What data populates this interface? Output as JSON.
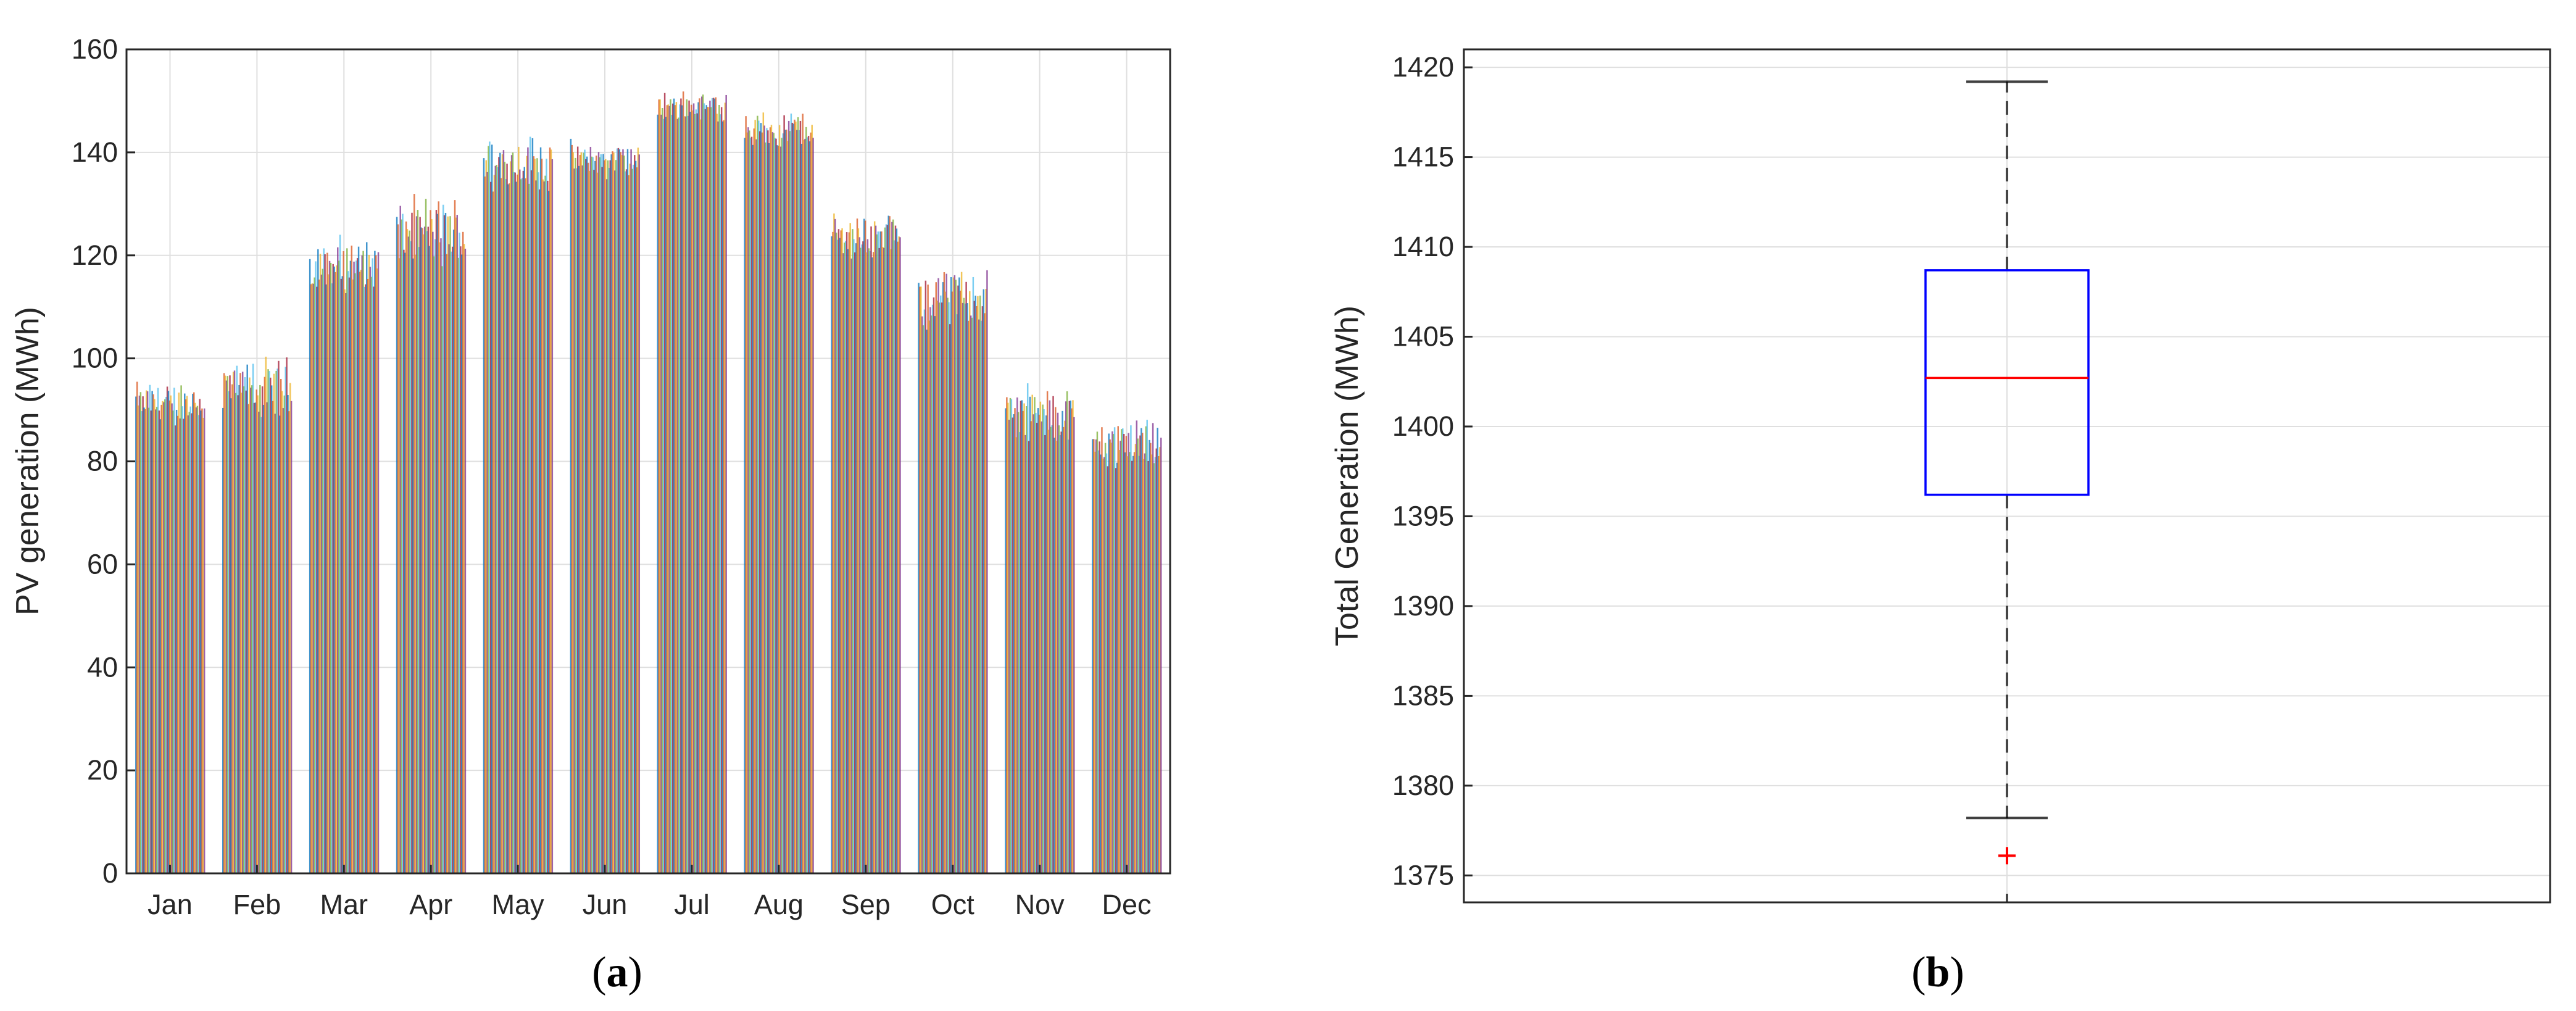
{
  "colors": {
    "grid": "#dfdfdf",
    "axis": "#262626",
    "box": "#0000ff",
    "median": "#ff0000",
    "whisker": "#000000",
    "outlier": "#ff0000",
    "bar_palette": [
      "#0072bd",
      "#d95319",
      "#edb120",
      "#7e2f8e",
      "#77ac30",
      "#4dbeee",
      "#a2142f"
    ]
  },
  "panels": [
    {
      "label_open": "(",
      "label_letter": "a",
      "label_close": ")"
    },
    {
      "label_open": "(",
      "label_letter": "b",
      "label_close": ")"
    }
  ],
  "chart_data": [
    {
      "type": "bar",
      "ylabel": "PV generation (MWh)",
      "xlabel": "",
      "ylim": [
        0,
        160
      ],
      "yticks": [
        0,
        20,
        40,
        60,
        80,
        100,
        120,
        140,
        160
      ],
      "grid": true,
      "categories": [
        "Jan",
        "Feb",
        "Mar",
        "Apr",
        "May",
        "Jun",
        "Jul",
        "Aug",
        "Sep",
        "Oct",
        "Nov",
        "Dec"
      ],
      "bars_per_category": 60,
      "series_note": "",
      "category_ranges": [
        {
          "category": "Jan",
          "min": 86,
          "typical": 92,
          "max": 97
        },
        {
          "category": "Feb",
          "min": 86,
          "typical": 93,
          "max": 102
        },
        {
          "category": "Mar",
          "min": 111,
          "typical": 117,
          "max": 125
        },
        {
          "category": "Apr",
          "min": 116,
          "typical": 123,
          "max": 133
        },
        {
          "category": "May",
          "min": 131,
          "typical": 139,
          "max": 145
        },
        {
          "category": "Jun",
          "min": 134,
          "typical": 138,
          "max": 143
        },
        {
          "category": "Jul",
          "min": 145,
          "typical": 149,
          "max": 153
        },
        {
          "category": "Aug",
          "min": 140,
          "typical": 145,
          "max": 149
        },
        {
          "category": "Sep",
          "min": 118,
          "typical": 123,
          "max": 130
        },
        {
          "category": "Oct",
          "min": 104,
          "typical": 111,
          "max": 120
        },
        {
          "category": "Nov",
          "min": 81,
          "typical": 88,
          "max": 97
        },
        {
          "category": "Dec",
          "min": 77,
          "typical": 82,
          "max": 90
        }
      ]
    },
    {
      "type": "box",
      "ylabel": "Total Generation (MWh)",
      "xlabel": "",
      "ylim": [
        1373.5,
        1421
      ],
      "yticks": [
        1375,
        1380,
        1385,
        1390,
        1395,
        1400,
        1405,
        1410,
        1415,
        1420
      ],
      "grid": true,
      "box": {
        "whisker_low": 1378.2,
        "q1": 1396.2,
        "median": 1402.7,
        "q3": 1408.7,
        "whisker_high": 1419.2,
        "outliers": [
          1376.1
        ]
      }
    }
  ]
}
